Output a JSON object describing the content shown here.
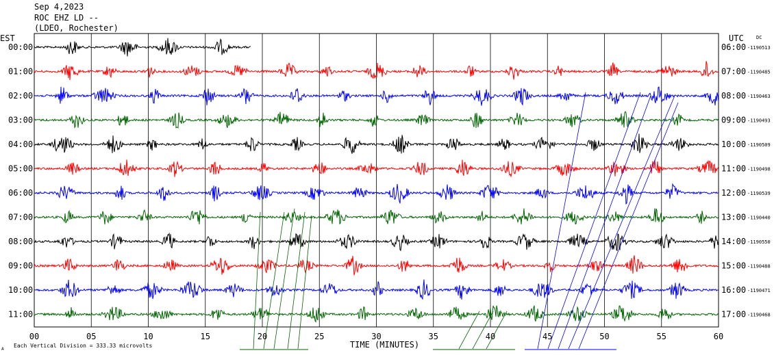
{
  "header": {
    "date": "Sep 4,2023",
    "station": "ROC EHZ LD --",
    "network": "(LDEO, Rochester)",
    "left_tz": "EST",
    "right_tz": "UTC",
    "dc_label": "DC"
  },
  "footer": {
    "scale_text": "Each Vertical Division =  333.33 microvolts",
    "corner_mark": "A"
  },
  "chart_data": {
    "type": "line",
    "xlabel": "TIME (MINUTES)",
    "xlim": [
      0,
      60
    ],
    "x_ticks": [
      "00",
      "05",
      "10",
      "15",
      "20",
      "25",
      "30",
      "35",
      "40",
      "45",
      "50",
      "55",
      "60"
    ],
    "rows": [
      {
        "est": "00:00",
        "utc": "06:00",
        "dc": "-1190513",
        "color": "#000000",
        "end_min": 19
      },
      {
        "est": "01:00",
        "utc": "07:00",
        "dc": "-1190485",
        "color": "#ff0000",
        "end_min": 60
      },
      {
        "est": "02:00",
        "utc": "08:00",
        "dc": "-1190463",
        "color": "#0000ff",
        "end_min": 60
      },
      {
        "est": "03:00",
        "utc": "09:00",
        "dc": "-1190493",
        "color": "#006400",
        "end_min": 60
      },
      {
        "est": "04:00",
        "utc": "10:00",
        "dc": "-1190509",
        "color": "#000000",
        "end_min": 60
      },
      {
        "est": "05:00",
        "utc": "11:00",
        "dc": "-1190498",
        "color": "#ff0000",
        "end_min": 60
      },
      {
        "est": "06:00",
        "utc": "12:00",
        "dc": "-1190539",
        "color": "#0000ff",
        "end_min": 60
      },
      {
        "est": "07:00",
        "utc": "13:00",
        "dc": "-1190440",
        "color": "#006400",
        "end_min": 60
      },
      {
        "est": "08:00",
        "utc": "14:00",
        "dc": "-1190550",
        "color": "#000000",
        "end_min": 60
      },
      {
        "est": "09:00",
        "utc": "15:00",
        "dc": "-1190488",
        "color": "#ff0000",
        "end_min": 60
      },
      {
        "est": "10:00",
        "utc": "16:00",
        "dc": "-1190471",
        "color": "#0000ff",
        "end_min": 60
      },
      {
        "est": "11:00",
        "utc": "17:00",
        "dc": "-1190468",
        "color": "#006400",
        "end_min": 60
      }
    ],
    "grid": true
  }
}
